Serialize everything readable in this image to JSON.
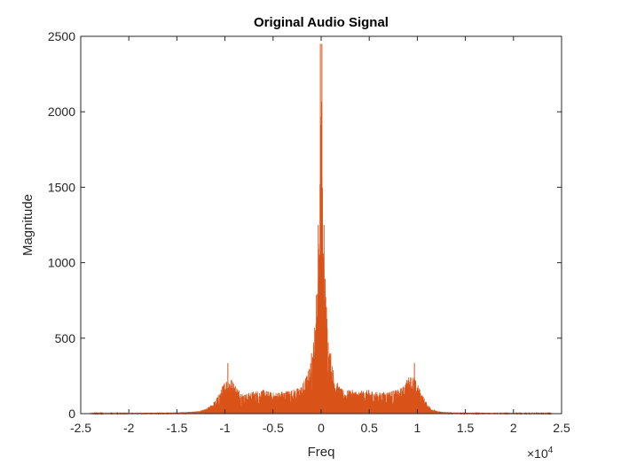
{
  "chart_data": {
    "type": "line",
    "title": "Original Audio Signal",
    "xlabel": "Freq",
    "ylabel": "Magnitude",
    "x_exponent_label": "×10",
    "x_exponent_power": "4",
    "xlim": [
      -25000,
      25000
    ],
    "ylim": [
      0,
      2500
    ],
    "xticks": [
      -25000,
      -20000,
      -15000,
      -10000,
      -5000,
      0,
      5000,
      10000,
      15000,
      20000,
      25000
    ],
    "xtick_labels": [
      "-2.5",
      "-2",
      "-1.5",
      "-1",
      "-0.5",
      "0",
      "0.5",
      "1",
      "1.5",
      "2",
      "2.5"
    ],
    "yticks": [
      0,
      500,
      1000,
      1500,
      2000,
      2500
    ],
    "ytick_labels": [
      "0",
      "500",
      "1000",
      "1500",
      "2000",
      "2500"
    ],
    "grid": false,
    "data_range": [
      -24000,
      24000
    ],
    "series": [
      {
        "color": "#D95319",
        "envelope_x": [
          -24000,
          -20000,
          -15000,
          -13000,
          -12000,
          -11500,
          -11000,
          -10500,
          -10000,
          -9500,
          -9000,
          -8500,
          -8000,
          -7000,
          -6000,
          -5000,
          -4000,
          -3000,
          -2500,
          -2000,
          -1500,
          -1000,
          -700,
          -500,
          -300,
          -200,
          -100,
          0,
          100,
          200,
          300,
          500,
          700,
          1000,
          1500,
          2000,
          2500,
          3000,
          4000,
          5000,
          6000,
          7000,
          8000,
          8500,
          9000,
          9500,
          10000,
          10500,
          11000,
          11500,
          12000,
          13000,
          15000,
          20000,
          24000
        ],
        "envelope_y": [
          3,
          4,
          8,
          15,
          30,
          55,
          90,
          150,
          220,
          250,
          200,
          160,
          130,
          150,
          160,
          140,
          150,
          160,
          170,
          190,
          260,
          360,
          560,
          820,
          1100,
          1300,
          1700,
          2450,
          1700,
          1300,
          1100,
          820,
          560,
          360,
          230,
          170,
          150,
          160,
          150,
          160,
          140,
          150,
          160,
          180,
          240,
          260,
          200,
          130,
          70,
          35,
          18,
          10,
          6,
          4,
          3
        ],
        "peaks": [
          {
            "x": -9700,
            "y": 335
          },
          {
            "x": -1000,
            "y": 400
          },
          {
            "x": -300,
            "y": 1250
          },
          {
            "x": -80,
            "y": 2450
          },
          {
            "x": 80,
            "y": 2450
          },
          {
            "x": 300,
            "y": 1250
          },
          {
            "x": 1000,
            "y": 400
          },
          {
            "x": 9700,
            "y": 335
          }
        ]
      }
    ]
  }
}
